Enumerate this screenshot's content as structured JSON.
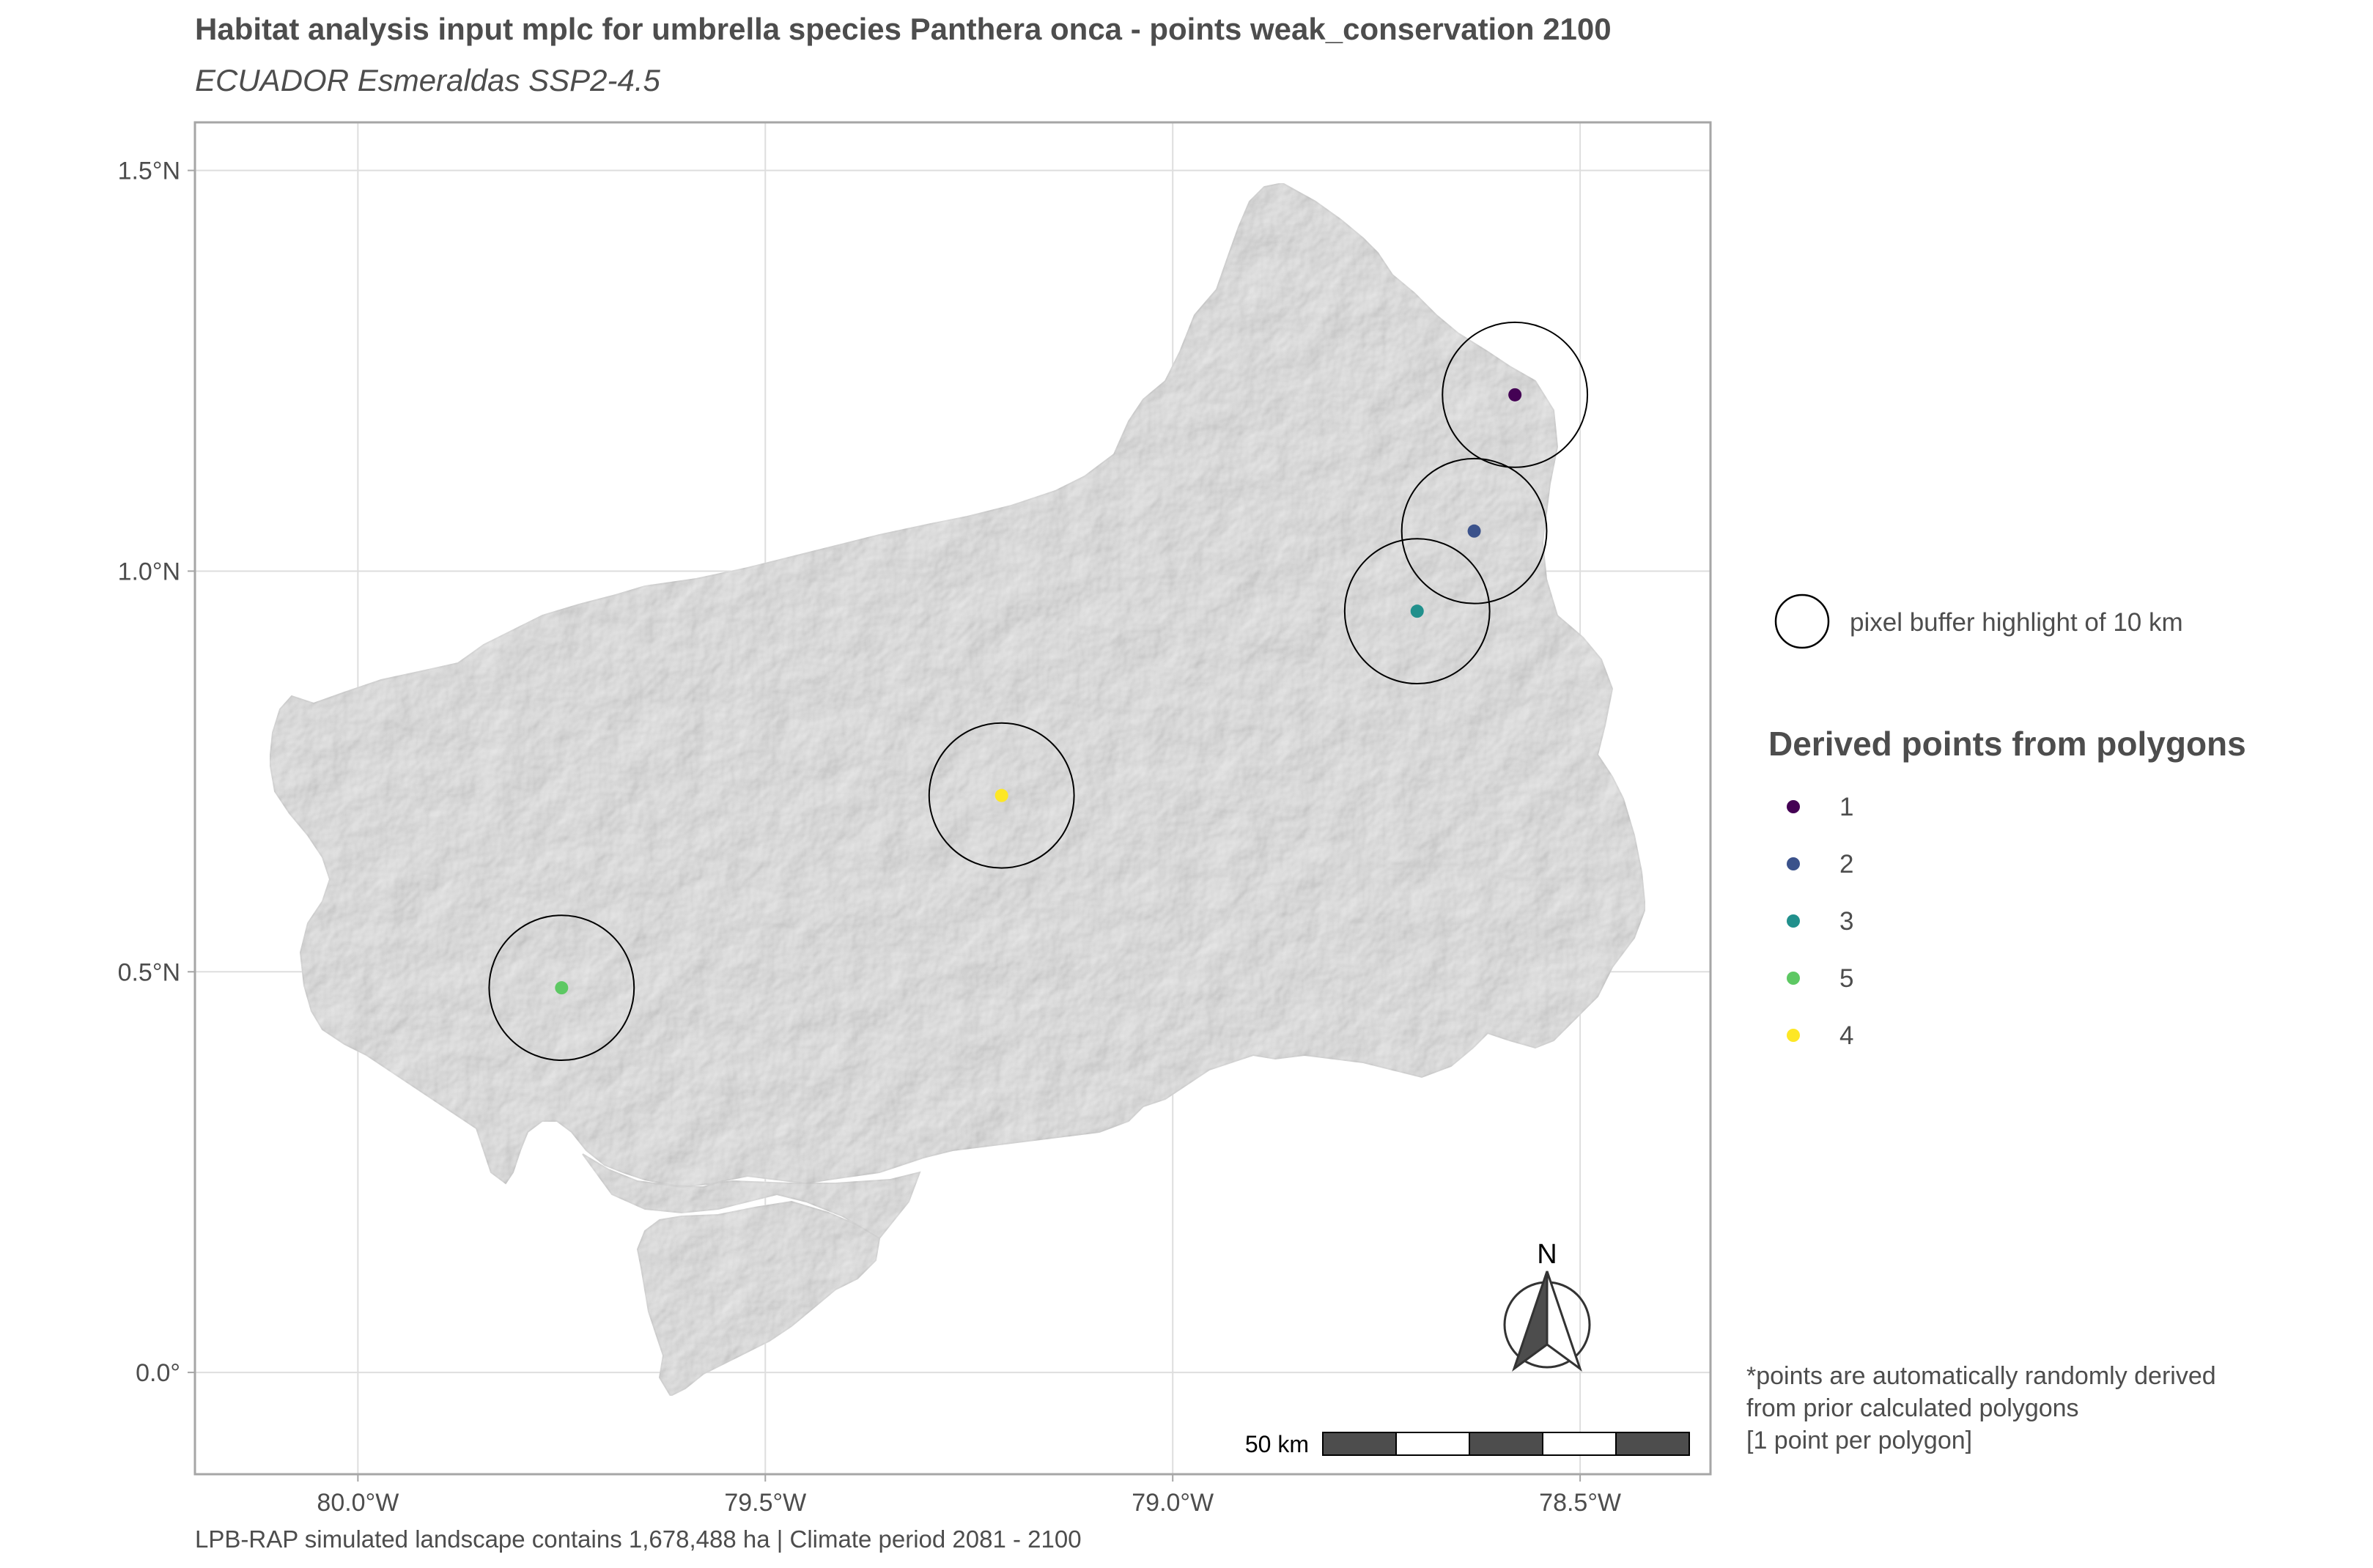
{
  "title": "Habitat analysis input mplc for umbrella species Panthera onca - points weak_conservation 2100",
  "subtitle": "ECUADOR Esmeraldas SSP2-4.5",
  "caption": "LPB-RAP simulated landscape contains 1,678,488 ha | Climate period 2081 - 2100",
  "note_lines": [
    "*points are automatically randomly derived",
    "from prior calculated polygons",
    "[1 point per polygon]"
  ],
  "legend": {
    "buffer_label": "pixel buffer highlight of 10 km",
    "points_title": "Derived points from polygons",
    "items": [
      {
        "label": "1",
        "color": "#440154"
      },
      {
        "label": "2",
        "color": "#3b528b"
      },
      {
        "label": "3",
        "color": "#21908c"
      },
      {
        "label": "5",
        "color": "#5dc863"
      },
      {
        "label": "4",
        "color": "#fde725"
      }
    ]
  },
  "map": {
    "x_ticks": [
      {
        "value": -80.0,
        "label": "80.0°W"
      },
      {
        "value": -79.5,
        "label": "79.5°W"
      },
      {
        "value": -79.0,
        "label": "79.0°W"
      },
      {
        "value": -78.5,
        "label": "78.5°W"
      }
    ],
    "y_ticks": [
      {
        "value": 0.0,
        "label": "0.0°"
      },
      {
        "value": 0.5,
        "label": "0.5°N"
      },
      {
        "value": 1.0,
        "label": "1.0°N"
      },
      {
        "value": 1.5,
        "label": "1.5°N"
      }
    ],
    "xlim": [
      -80.2,
      -78.34
    ],
    "ylim": [
      -0.127,
      1.56
    ],
    "points": [
      {
        "id": "1",
        "lon": -78.58,
        "lat": 1.22,
        "color": "#440154"
      },
      {
        "id": "2",
        "lon": -78.63,
        "lat": 1.05,
        "color": "#3b528b"
      },
      {
        "id": "3",
        "lon": -78.7,
        "lat": 0.95,
        "color": "#21908c"
      },
      {
        "id": "4",
        "lon": -79.21,
        "lat": 0.72,
        "color": "#fde725"
      },
      {
        "id": "5",
        "lon": -79.75,
        "lat": 0.48,
        "color": "#5dc863"
      }
    ],
    "buffer_km": 10,
    "scale_label": "50 km",
    "north_label": "N",
    "colors": {
      "land": "#ebebeb",
      "grid": "#dedede",
      "border": "#a6a6a6"
    }
  }
}
